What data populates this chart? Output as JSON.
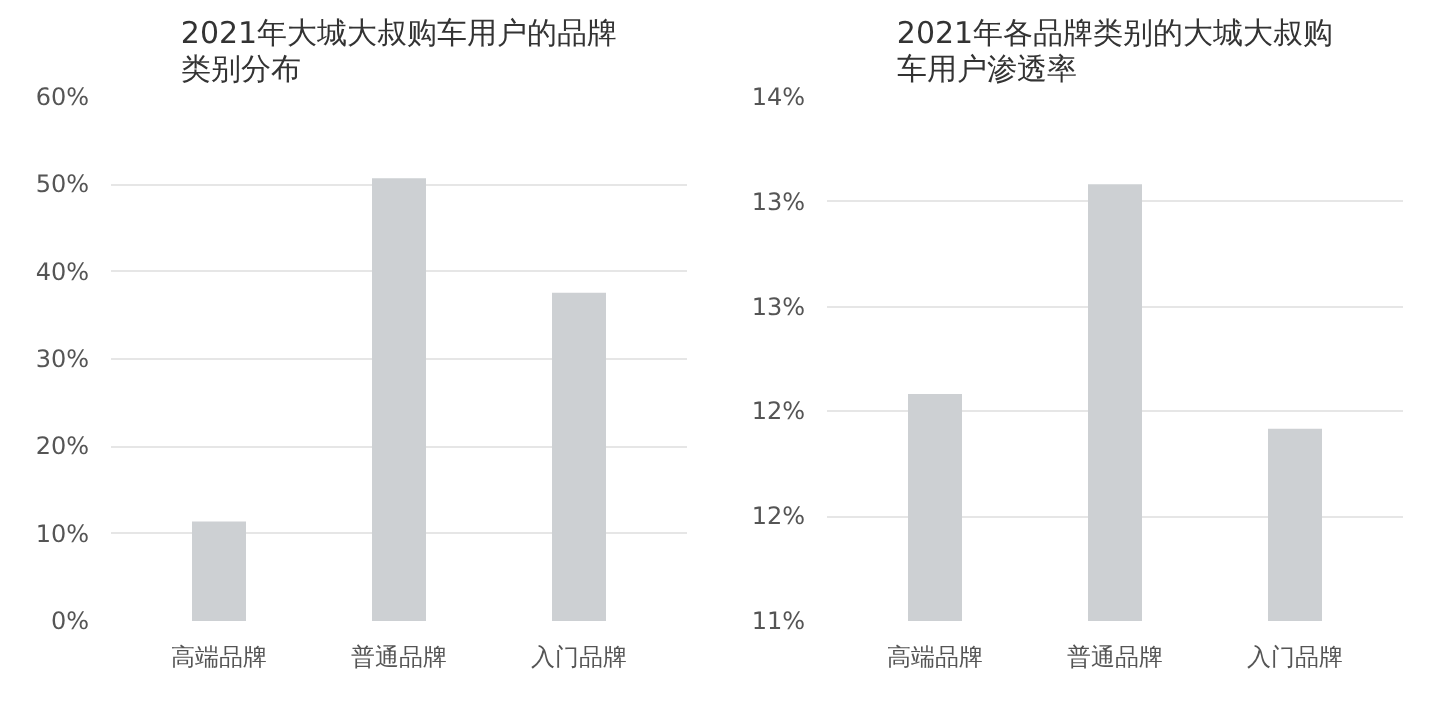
{
  "chart_data": [
    {
      "type": "bar",
      "title": "2021年大城大叔购车用户的品牌类别分布",
      "categories": [
        "高端品牌",
        "普通品牌",
        "入门品牌"
      ],
      "values": [
        11.4,
        50.7,
        37.6
      ],
      "color": "#cdd0d3",
      "ylim": [
        0,
        60
      ],
      "yticks": [
        {
          "value": 0,
          "label": "0%"
        },
        {
          "value": 10,
          "label": "10%"
        },
        {
          "value": 20,
          "label": "20%"
        },
        {
          "value": 30,
          "label": "30%"
        },
        {
          "value": 40,
          "label": "40%"
        },
        {
          "value": 50,
          "label": "50%"
        },
        {
          "value": 60,
          "label": "60%"
        }
      ],
      "grid": "y"
    },
    {
      "type": "bar",
      "title": "2021年各品牌类别的大城大叔购车用户渗透率",
      "categories": [
        "高端品牌",
        "普通品牌",
        "入门品牌"
      ],
      "values": [
        12.3,
        13.5,
        12.1
      ],
      "color": "#cdd0d3",
      "ylim": [
        11,
        14
      ],
      "yticks": [
        {
          "value": 11,
          "label": "11%"
        },
        {
          "value": 11.6,
          "label": "12%"
        },
        {
          "value": 12.2,
          "label": "12%"
        },
        {
          "value": 12.8,
          "label": "13%"
        },
        {
          "value": 13.4,
          "label": "13%"
        },
        {
          "value": 14,
          "label": "14%"
        }
      ],
      "grid": "y"
    }
  ]
}
